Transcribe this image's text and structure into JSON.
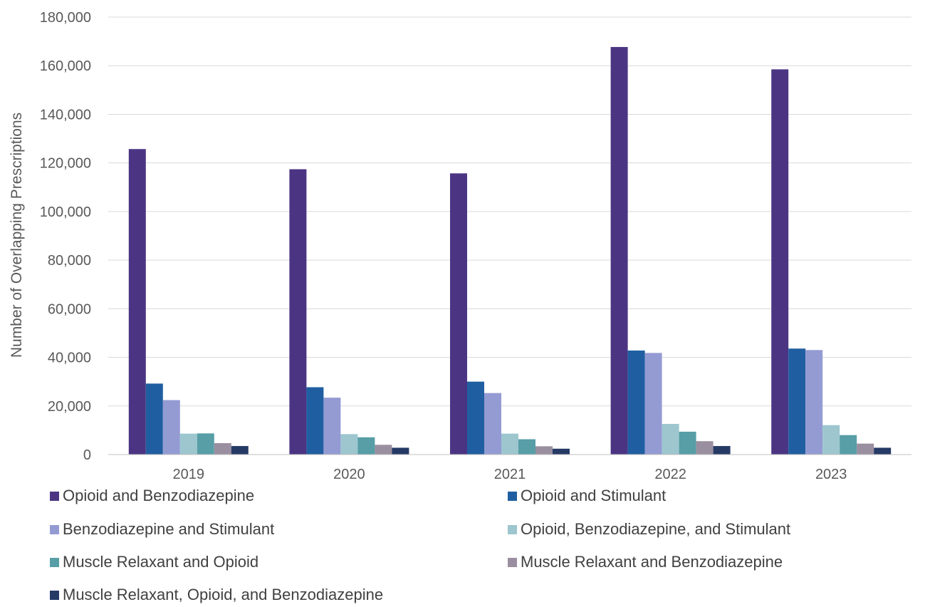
{
  "chart_data": {
    "type": "bar",
    "title": "",
    "xlabel": "",
    "ylabel": "Number of Overlapping Prescriptions",
    "ylim": [
      0,
      180000
    ],
    "ytick_step": 20000,
    "yticks": [
      "0",
      "20,000",
      "40,000",
      "60,000",
      "80,000",
      "100,000",
      "120,000",
      "140,000",
      "160,000",
      "180,000"
    ],
    "grid": "horizontal",
    "legend_position": "bottom",
    "categories": [
      "2019",
      "2020",
      "2021",
      "2022",
      "2023"
    ],
    "series": [
      {
        "name": "Opioid and Benzodiazepine",
        "color": "#4b3583",
        "values": [
          125700,
          117400,
          115700,
          167700,
          158500
        ]
      },
      {
        "name": "Opioid and Stimulant",
        "color": "#1f5fa1",
        "values": [
          29200,
          27700,
          30000,
          42800,
          43600
        ]
      },
      {
        "name": "Benzodiazepine and Stimulant",
        "color": "#949bd3",
        "values": [
          22400,
          23400,
          25300,
          41800,
          43000
        ]
      },
      {
        "name": "Opioid, Benzodiazepine, and Stimulant",
        "color": "#9dc6cf",
        "values": [
          8600,
          8400,
          8600,
          12600,
          12100
        ]
      },
      {
        "name": "Muscle Relaxant and Opioid",
        "color": "#579ea6",
        "values": [
          8700,
          7100,
          6300,
          9400,
          8000
        ]
      },
      {
        "name": "Muscle Relaxant and Benzodiazepine",
        "color": "#9a8fa0",
        "values": [
          4700,
          4000,
          3400,
          5500,
          4500
        ]
      },
      {
        "name": "Muscle Relaxant, Opioid, and Benzodiazepine",
        "color": "#263a66",
        "values": [
          3500,
          2800,
          2400,
          3500,
          2800
        ]
      }
    ]
  }
}
